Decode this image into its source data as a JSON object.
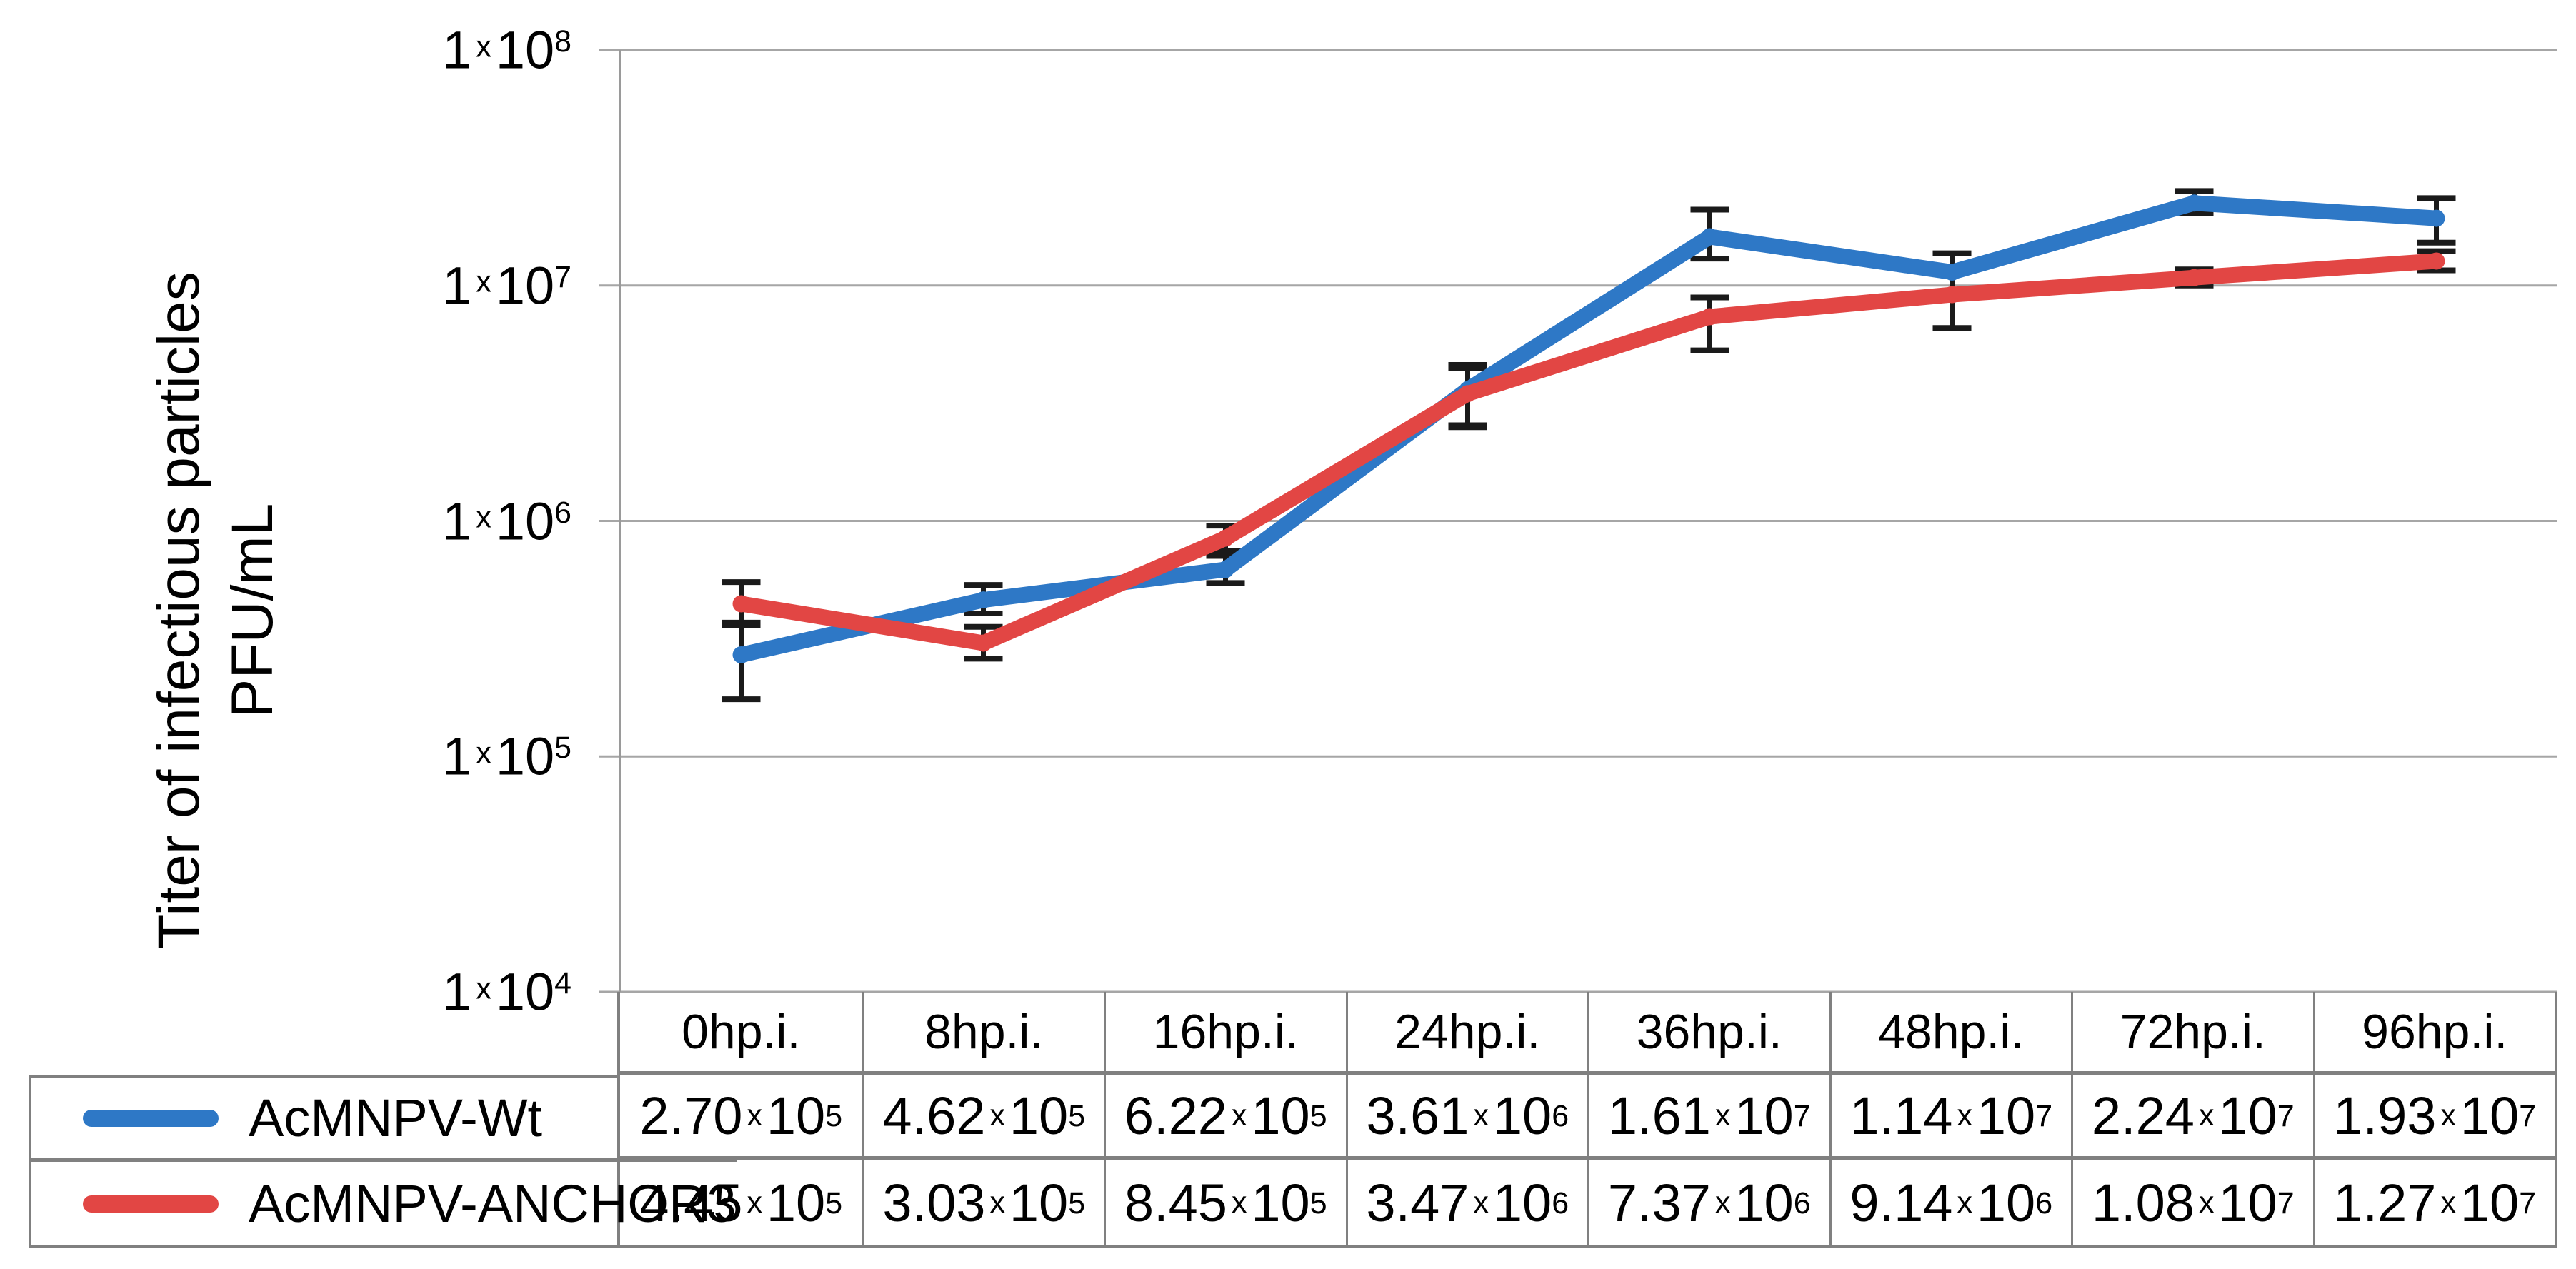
{
  "chart_data": {
    "type": "line",
    "title": "",
    "y_axis": {
      "label_line1": "Titer of infectious particles",
      "label_line2": "PFU/mL",
      "scale": "log",
      "ylim": [
        10000,
        100000000
      ],
      "tick_mantissa": "1",
      "mult_symbol": "x",
      "tick_base": "10",
      "tick_exponents": [
        "8",
        "7",
        "6",
        "5",
        "4"
      ]
    },
    "categories": [
      "0hp.i.",
      "8hp.i.",
      "16hp.i.",
      "24hp.i.",
      "36hp.i.",
      "48hp.i.",
      "72hp.i.",
      "96hp.i."
    ],
    "grid": true,
    "legend_position": "bottom-left-table",
    "series": [
      {
        "name": "AcMNPV-Wt",
        "color": "#2E78C6",
        "values": [
          270000,
          462000,
          622000,
          3610000,
          16100000,
          11400000,
          22400000,
          19300000
        ],
        "display": [
          [
            "2.70",
            "5"
          ],
          [
            "4.62",
            "5"
          ],
          [
            "6.22",
            "5"
          ],
          [
            "3.61",
            "6"
          ],
          [
            "1.61",
            "7"
          ],
          [
            "1.14",
            "7"
          ],
          [
            "2.24",
            "7"
          ],
          [
            "1.93",
            "7"
          ]
        ],
        "err_lo": [
          175000,
          405000,
          545000,
          2550000,
          13000000,
          8800000,
          20200000,
          15200000
        ],
        "err_hi": [
          370000,
          535000,
          710000,
          4600000,
          21000000,
          13700000,
          25200000,
          23500000
        ]
      },
      {
        "name": "AcMNPV-ANCHOR3",
        "color": "#E24644",
        "values": [
          445000,
          303000,
          845000,
          3470000,
          7370000,
          9140000,
          10800000,
          12700000
        ],
        "display": [
          [
            "4.45",
            "5"
          ],
          [
            "3.03",
            "5"
          ],
          [
            "8.45",
            "5"
          ],
          [
            "3.47",
            "6"
          ],
          [
            "7.37",
            "6"
          ],
          [
            "9.14",
            "6"
          ],
          [
            "1.08",
            "7"
          ],
          [
            "1.27",
            "7"
          ]
        ],
        "err_lo": [
          360000,
          260000,
          745000,
          2500000,
          5300000,
          6600000,
          10000000,
          11600000
        ],
        "err_hi": [
          550000,
          355000,
          955000,
          4450000,
          8900000,
          11600000,
          11700000,
          14000000
        ]
      }
    ]
  },
  "colors": {
    "background": "#FFFFFF",
    "gridline": "#A6A6A6",
    "axis": "#9A9A9A",
    "table_border": "#808080",
    "error_bar": "#1A1A1A",
    "text": "#000000"
  }
}
